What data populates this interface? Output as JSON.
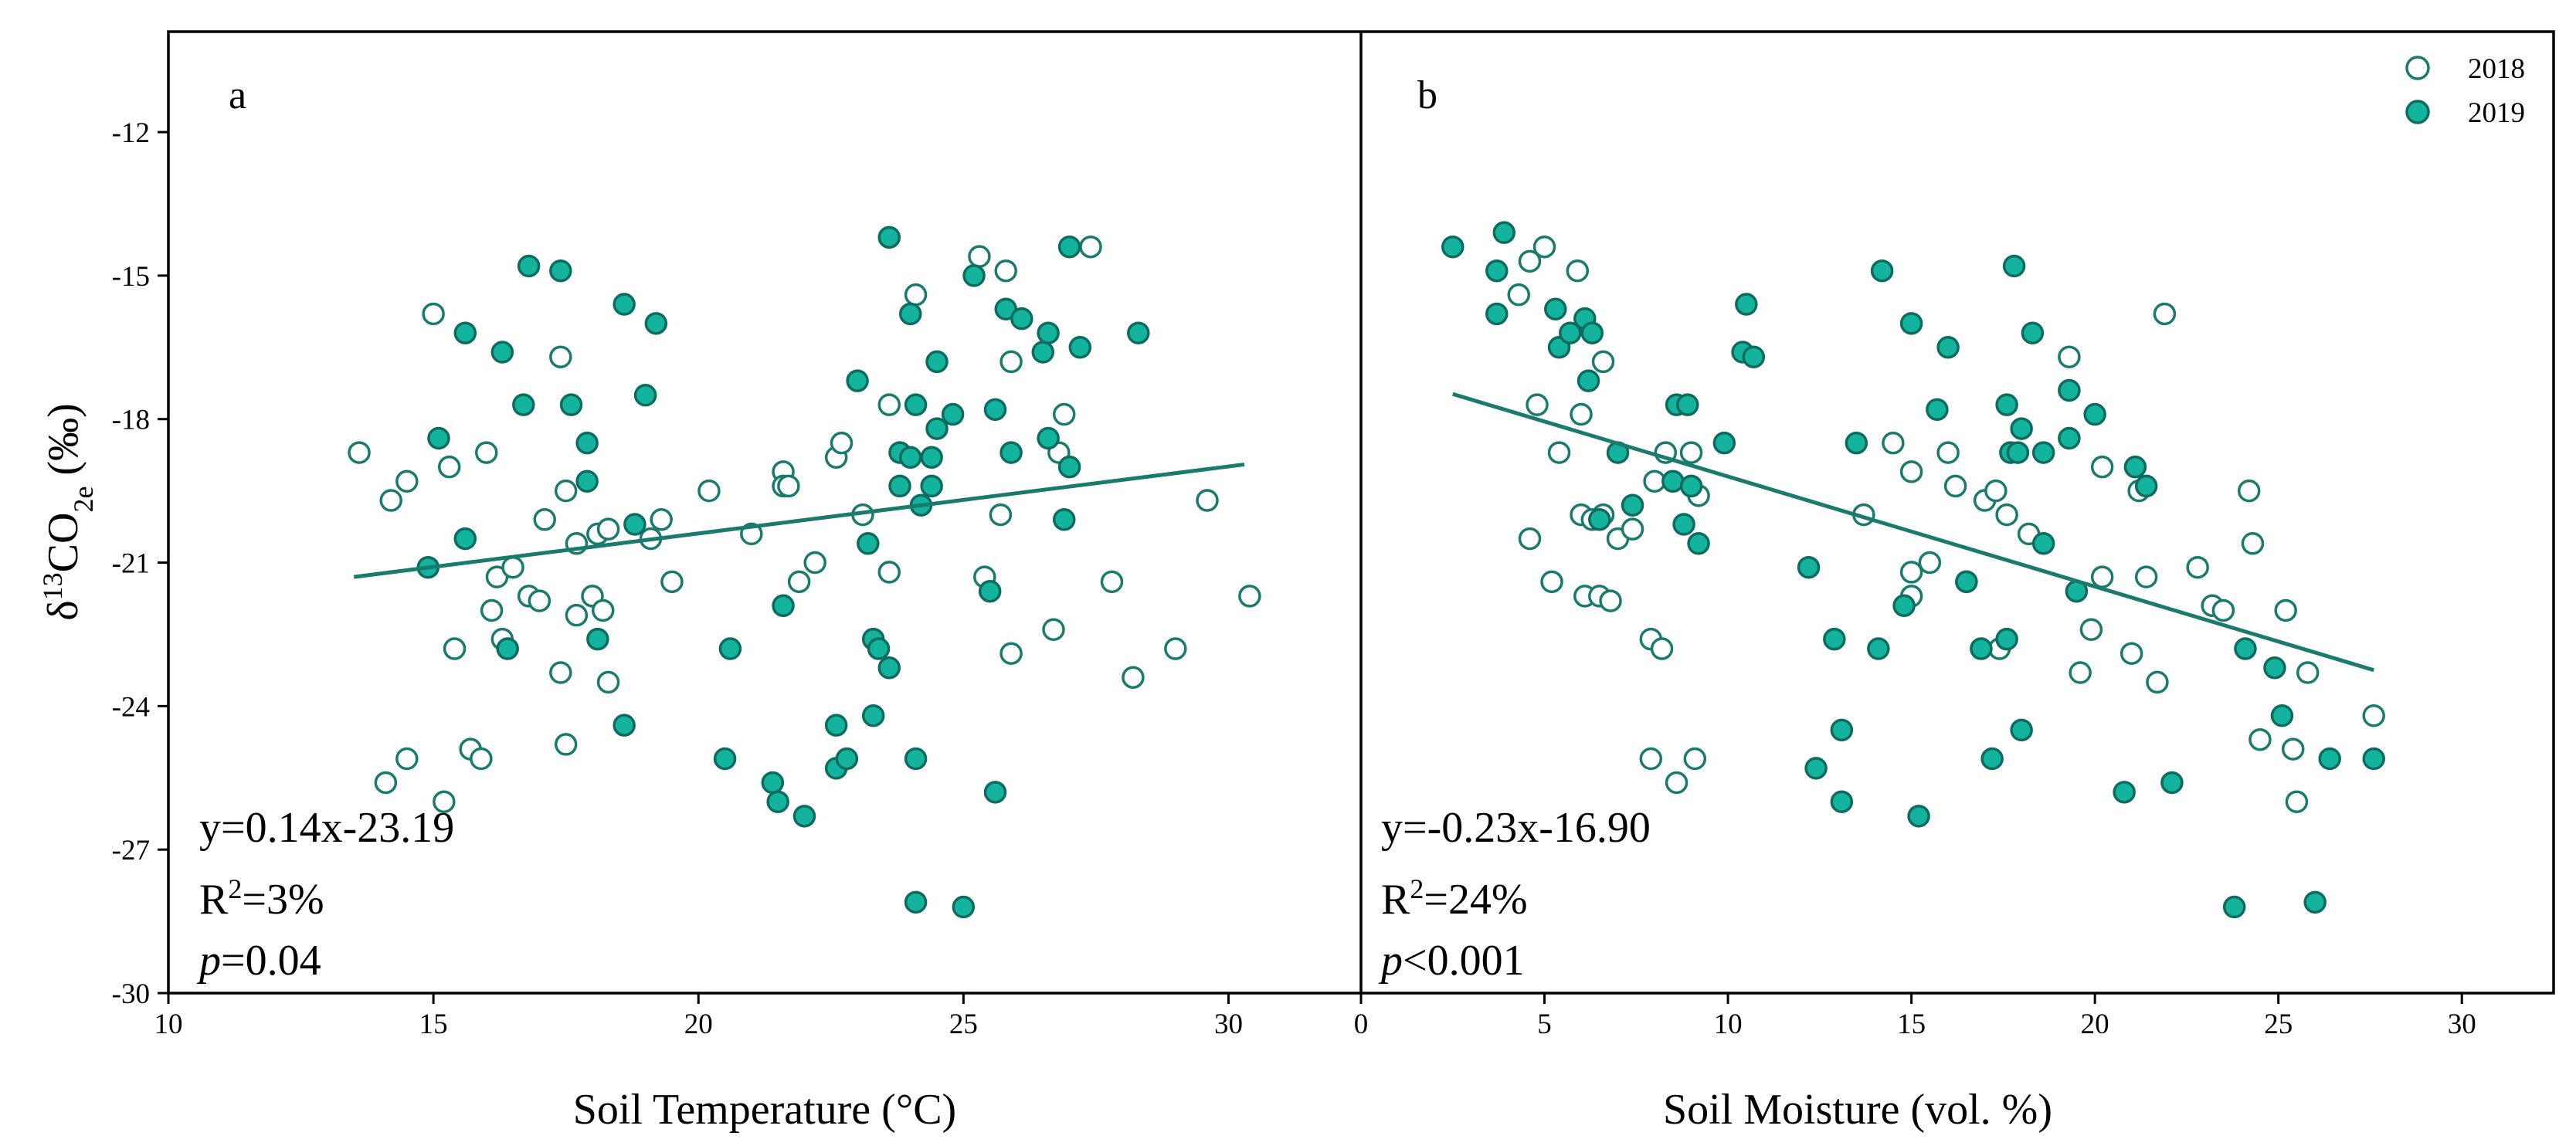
{
  "chart_data": [
    {
      "type": "scatter",
      "panel_label": "a",
      "xlabel": "Soil Temperature (°C)",
      "ylabel": {
        "prefix": "δ",
        "sup": "13",
        "main": "CO",
        "sub": "2e",
        "suffix": " (‰)"
      },
      "xlim": [
        10,
        32.5
      ],
      "ylim": [
        -30,
        -9.9
      ],
      "xticks": [
        10,
        15,
        20,
        25,
        30
      ],
      "yticks": [
        -30,
        -27,
        -24,
        -21,
        -18,
        -15,
        -12
      ],
      "equation": "y=0.14x-23.19",
      "r2": {
        "prefix": "R",
        "sup": "2",
        "value": "=3%"
      },
      "pvalue": {
        "symbol": "p",
        "value": "=0.04"
      },
      "fit": {
        "slope": 0.14,
        "intercept": -23.19,
        "x_range": [
          13.5,
          30.3
        ]
      },
      "series": [
        {
          "name": "2018",
          "marker": "open",
          "points": [
            [
              13.6,
              -18.7
            ],
            [
              14.2,
              -19.7
            ],
            [
              14.5,
              -19.3
            ],
            [
              14.1,
              -25.6
            ],
            [
              14.5,
              -25.1
            ],
            [
              15.0,
              -15.8
            ],
            [
              15.2,
              -26.0
            ],
            [
              15.3,
              -19.0
            ],
            [
              15.4,
              -22.8
            ],
            [
              15.7,
              -24.9
            ],
            [
              15.9,
              -25.1
            ],
            [
              16.0,
              -18.7
            ],
            [
              16.1,
              -22.0
            ],
            [
              16.2,
              -21.3
            ],
            [
              16.3,
              -22.6
            ],
            [
              16.5,
              -21.1
            ],
            [
              16.8,
              -21.7
            ],
            [
              17.0,
              -21.8
            ],
            [
              17.1,
              -20.1
            ],
            [
              17.4,
              -16.7
            ],
            [
              17.4,
              -23.3
            ],
            [
              17.5,
              -24.8
            ],
            [
              17.5,
              -19.5
            ],
            [
              17.7,
              -22.1
            ],
            [
              17.7,
              -20.6
            ],
            [
              18.0,
              -21.7
            ],
            [
              18.1,
              -20.4
            ],
            [
              18.2,
              -22.0
            ],
            [
              18.3,
              -23.5
            ],
            [
              18.3,
              -20.3
            ],
            [
              19.1,
              -20.5
            ],
            [
              19.3,
              -20.1
            ],
            [
              19.5,
              -21.4
            ],
            [
              20.2,
              -19.5
            ],
            [
              21.0,
              -20.4
            ],
            [
              21.6,
              -19.1
            ],
            [
              21.6,
              -19.4
            ],
            [
              21.7,
              -19.4
            ],
            [
              21.9,
              -21.4
            ],
            [
              22.2,
              -21.0
            ],
            [
              22.6,
              -18.8
            ],
            [
              22.7,
              -18.5
            ],
            [
              23.1,
              -20.0
            ],
            [
              23.6,
              -21.2
            ],
            [
              23.6,
              -17.7
            ],
            [
              24.1,
              -15.4
            ],
            [
              25.3,
              -14.6
            ],
            [
              25.4,
              -21.3
            ],
            [
              25.7,
              -20.0
            ],
            [
              25.8,
              -14.9
            ],
            [
              25.9,
              -16.8
            ],
            [
              25.9,
              -22.9
            ],
            [
              26.7,
              -22.4
            ],
            [
              26.8,
              -18.7
            ],
            [
              26.9,
              -17.9
            ],
            [
              27.4,
              -14.4
            ],
            [
              27.8,
              -21.4
            ],
            [
              28.2,
              -23.4
            ],
            [
              29.0,
              -22.8
            ],
            [
              29.6,
              -19.7
            ],
            [
              30.4,
              -21.7
            ]
          ]
        },
        {
          "name": "2019",
          "marker": "filled",
          "points": [
            [
              14.9,
              -21.1
            ],
            [
              15.1,
              -18.4
            ],
            [
              15.6,
              -16.2
            ],
            [
              15.6,
              -20.5
            ],
            [
              16.3,
              -16.6
            ],
            [
              16.4,
              -22.8
            ],
            [
              16.7,
              -17.7
            ],
            [
              16.8,
              -14.8
            ],
            [
              17.4,
              -14.9
            ],
            [
              17.6,
              -17.7
            ],
            [
              17.9,
              -18.5
            ],
            [
              17.9,
              -19.3
            ],
            [
              18.1,
              -22.6
            ],
            [
              18.6,
              -15.6
            ],
            [
              18.6,
              -24.4
            ],
            [
              18.8,
              -20.2
            ],
            [
              19.0,
              -17.5
            ],
            [
              19.2,
              -16.0
            ],
            [
              20.5,
              -25.1
            ],
            [
              20.6,
              -22.8
            ],
            [
              21.4,
              -25.6
            ],
            [
              21.5,
              -26.0
            ],
            [
              21.6,
              -21.9
            ],
            [
              22.0,
              -26.3
            ],
            [
              22.6,
              -24.4
            ],
            [
              22.6,
              -25.3
            ],
            [
              22.8,
              -25.1
            ],
            [
              23.0,
              -17.2
            ],
            [
              23.2,
              -20.6
            ],
            [
              23.3,
              -22.6
            ],
            [
              23.3,
              -24.2
            ],
            [
              23.4,
              -22.8
            ],
            [
              23.6,
              -23.2
            ],
            [
              23.6,
              -14.2
            ],
            [
              23.8,
              -18.7
            ],
            [
              23.8,
              -19.4
            ],
            [
              24.0,
              -15.8
            ],
            [
              24.0,
              -18.8
            ],
            [
              24.1,
              -25.1
            ],
            [
              24.1,
              -28.1
            ],
            [
              24.1,
              -17.7
            ],
            [
              24.2,
              -19.8
            ],
            [
              24.4,
              -19.4
            ],
            [
              24.4,
              -18.8
            ],
            [
              24.5,
              -18.2
            ],
            [
              24.5,
              -16.8
            ],
            [
              24.8,
              -17.9
            ],
            [
              25.0,
              -28.2
            ],
            [
              25.2,
              -15.0
            ],
            [
              25.5,
              -21.6
            ],
            [
              25.6,
              -25.8
            ],
            [
              25.6,
              -17.8
            ],
            [
              25.8,
              -15.7
            ],
            [
              25.9,
              -18.7
            ],
            [
              26.1,
              -15.9
            ],
            [
              26.5,
              -16.6
            ],
            [
              26.6,
              -16.2
            ],
            [
              26.6,
              -18.4
            ],
            [
              26.9,
              -20.1
            ],
            [
              27.0,
              -19.0
            ],
            [
              27.0,
              -14.4
            ],
            [
              27.2,
              -16.5
            ],
            [
              28.3,
              -16.2
            ]
          ]
        }
      ]
    },
    {
      "type": "scatter",
      "panel_label": "b",
      "xlabel": "Soil Moisture (vol. %)",
      "xlim": [
        0,
        32.5
      ],
      "ylim": [
        -30,
        -9.9
      ],
      "xticks": [
        0,
        5,
        10,
        15,
        20,
        25,
        30
      ],
      "equation": "y=-0.23x-16.90",
      "r2": {
        "prefix": "R",
        "sup": "2",
        "value": "=24%"
      },
      "pvalue": {
        "symbol": "p",
        "value": "<0.001"
      },
      "fit": {
        "slope": -0.23,
        "intercept": -16.9,
        "x_range": [
          2.5,
          27.6
        ]
      },
      "legend": {
        "position": "top-right",
        "entries": [
          {
            "label": "2018",
            "marker": "open"
          },
          {
            "label": "2019",
            "marker": "filled"
          }
        ]
      },
      "series": [
        {
          "name": "2018",
          "marker": "open",
          "points": [
            [
              4.3,
              -15.4
            ],
            [
              4.6,
              -20.5
            ],
            [
              4.6,
              -14.7
            ],
            [
              4.8,
              -17.7
            ],
            [
              5.0,
              -14.4
            ],
            [
              5.2,
              -21.4
            ],
            [
              5.4,
              -18.7
            ],
            [
              5.9,
              -14.9
            ],
            [
              6.0,
              -17.9
            ],
            [
              6.0,
              -20.0
            ],
            [
              6.1,
              -21.7
            ],
            [
              6.3,
              -20.1
            ],
            [
              6.5,
              -21.7
            ],
            [
              6.6,
              -16.8
            ],
            [
              6.6,
              -20.0
            ],
            [
              6.8,
              -21.8
            ],
            [
              7.0,
              -20.5
            ],
            [
              7.4,
              -20.3
            ],
            [
              7.9,
              -22.6
            ],
            [
              7.9,
              -25.1
            ],
            [
              8.0,
              -19.3
            ],
            [
              8.2,
              -22.8
            ],
            [
              8.3,
              -18.7
            ],
            [
              8.6,
              -25.6
            ],
            [
              9.0,
              -18.7
            ],
            [
              9.1,
              -25.1
            ],
            [
              9.2,
              -19.6
            ],
            [
              13.7,
              -20.0
            ],
            [
              14.5,
              -18.5
            ],
            [
              15.0,
              -19.1
            ],
            [
              15.0,
              -21.2
            ],
            [
              15.0,
              -21.7
            ],
            [
              15.5,
              -21.0
            ],
            [
              16.0,
              -18.7
            ],
            [
              16.2,
              -19.4
            ],
            [
              16.5,
              -21.4
            ],
            [
              17.0,
              -19.7
            ],
            [
              17.3,
              -19.5
            ],
            [
              17.4,
              -22.8
            ],
            [
              17.6,
              -20.0
            ],
            [
              18.2,
              -20.4
            ],
            [
              19.3,
              -16.7
            ],
            [
              19.6,
              -23.3
            ],
            [
              19.9,
              -22.4
            ],
            [
              20.2,
              -19.0
            ],
            [
              20.2,
              -21.3
            ],
            [
              21.0,
              -22.9
            ],
            [
              21.2,
              -19.5
            ],
            [
              21.4,
              -21.3
            ],
            [
              21.7,
              -23.5
            ],
            [
              21.9,
              -15.8
            ],
            [
              22.8,
              -21.1
            ],
            [
              23.2,
              -21.9
            ],
            [
              23.5,
              -22.0
            ],
            [
              24.2,
              -19.5
            ],
            [
              24.3,
              -20.6
            ],
            [
              24.5,
              -24.7
            ],
            [
              25.2,
              -22.0
            ],
            [
              25.4,
              -24.9
            ],
            [
              25.5,
              -26.0
            ],
            [
              25.8,
              -23.3
            ],
            [
              27.6,
              -24.2
            ]
          ]
        },
        {
          "name": "2019",
          "marker": "filled",
          "points": [
            [
              2.5,
              -14.4
            ],
            [
              3.7,
              -15.8
            ],
            [
              3.7,
              -14.9
            ],
            [
              3.9,
              -14.1
            ],
            [
              5.3,
              -15.7
            ],
            [
              5.4,
              -16.5
            ],
            [
              5.7,
              -16.2
            ],
            [
              6.1,
              -15.9
            ],
            [
              6.2,
              -17.2
            ],
            [
              6.3,
              -16.2
            ],
            [
              6.5,
              -20.1
            ],
            [
              7.0,
              -18.7
            ],
            [
              7.4,
              -19.8
            ],
            [
              8.5,
              -19.3
            ],
            [
              8.6,
              -17.7
            ],
            [
              8.8,
              -20.2
            ],
            [
              8.9,
              -17.7
            ],
            [
              9.0,
              -19.4
            ],
            [
              9.2,
              -20.6
            ],
            [
              9.9,
              -18.5
            ],
            [
              10.4,
              -16.6
            ],
            [
              10.5,
              -15.6
            ],
            [
              10.7,
              -16.7
            ],
            [
              12.2,
              -21.1
            ],
            [
              12.4,
              -25.3
            ],
            [
              12.9,
              -22.6
            ],
            [
              13.1,
              -24.5
            ],
            [
              13.1,
              -26.0
            ],
            [
              13.5,
              -18.5
            ],
            [
              14.1,
              -22.8
            ],
            [
              14.2,
              -14.9
            ],
            [
              14.8,
              -21.9
            ],
            [
              15.0,
              -16.0
            ],
            [
              15.2,
              -26.3
            ],
            [
              15.7,
              -17.8
            ],
            [
              16.0,
              -16.5
            ],
            [
              16.5,
              -21.4
            ],
            [
              16.9,
              -22.8
            ],
            [
              17.2,
              -25.1
            ],
            [
              17.6,
              -22.6
            ],
            [
              17.6,
              -17.7
            ],
            [
              17.7,
              -18.7
            ],
            [
              17.8,
              -14.8
            ],
            [
              17.9,
              -18.7
            ],
            [
              18.0,
              -18.2
            ],
            [
              18.0,
              -24.5
            ],
            [
              18.3,
              -16.2
            ],
            [
              18.6,
              -18.7
            ],
            [
              18.6,
              -20.6
            ],
            [
              19.3,
              -18.4
            ],
            [
              19.3,
              -17.4
            ],
            [
              19.5,
              -21.6
            ],
            [
              20.0,
              -17.9
            ],
            [
              20.8,
              -25.8
            ],
            [
              21.1,
              -19.0
            ],
            [
              21.4,
              -19.4
            ],
            [
              22.1,
              -25.6
            ],
            [
              23.8,
              -28.2
            ],
            [
              24.1,
              -22.8
            ],
            [
              24.9,
              -23.2
            ],
            [
              25.1,
              -24.2
            ],
            [
              26.0,
              -28.1
            ],
            [
              26.4,
              -25.1
            ],
            [
              27.6,
              -25.1
            ]
          ]
        }
      ]
    }
  ]
}
